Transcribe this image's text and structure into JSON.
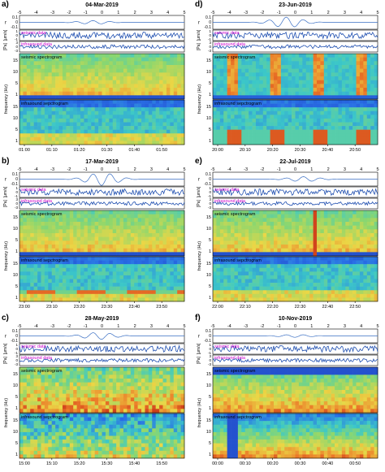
{
  "figure": {
    "panels": [
      {
        "id": "a",
        "label": "a)",
        "date": "04-Mar-2019",
        "time_ticks": [
          "01:00",
          "01:10",
          "01:20",
          "01:30",
          "01:40",
          "01:50"
        ],
        "pattern": "continuous"
      },
      {
        "id": "b",
        "label": "b)",
        "date": "17-Mar-2019",
        "time_ticks": [
          "23:00",
          "23:10",
          "23:20",
          "23:30",
          "23:40",
          "23:50"
        ],
        "pattern": "bands"
      },
      {
        "id": "c",
        "label": "c)",
        "date": "28-May-2019",
        "time_ticks": [
          "15:00",
          "15:10",
          "15:20",
          "15:30",
          "15:40",
          "15:50"
        ],
        "pattern": "noisy"
      },
      {
        "id": "d",
        "label": "d)",
        "date": "23-Jun-2019",
        "time_ticks": [
          "20:00",
          "20:10",
          "20:20",
          "20:30",
          "20:40",
          "20:50"
        ],
        "pattern": "bursts"
      },
      {
        "id": "e",
        "label": "e)",
        "date": "22-Jul-2019",
        "time_ticks": [
          "22:00",
          "22:10",
          "22:20",
          "22:30",
          "22:40",
          "22:50"
        ],
        "pattern": "spike"
      },
      {
        "id": "f",
        "label": "f)",
        "date": "10-Nov-2019",
        "time_ticks": [
          "00:00",
          "00:10",
          "00:20",
          "00:30",
          "00:40",
          "00:50"
        ],
        "pattern": "event"
      }
    ],
    "wavelet_x_ticks": [
      "-5",
      "-4",
      "-3",
      "-2",
      "-1",
      "0",
      "1",
      "2",
      "3",
      "4",
      "5"
    ],
    "wavelet_y_ticks": [
      "0.1",
      "0",
      "-0.1"
    ],
    "wavelet_ylabel": "r",
    "seismic_label": "seismic data",
    "seismic_ylabel": "[µm/s]",
    "seismic_ticks": [
      "1",
      "0",
      "-1"
    ],
    "infrasound_label": "infrasound data",
    "infrasound_ylabel": "[Pa]",
    "infrasound_ticks": [
      "3",
      "0",
      "-3"
    ],
    "seismic_spec_label": "seismic spectrogram",
    "infra_spec_label": "infrasound sepctrogram",
    "seismic_freq_ticks": [
      "15",
      "10",
      "5",
      "1"
    ],
    "infra_freq_ticks": [
      "15",
      "10",
      "5",
      "1"
    ],
    "freq_ylabel": "frequency (Hz)",
    "colors": {
      "wavelet": "#3a6fc4",
      "seismic": "#1f4fb0",
      "infrasound": "#1f4fb0",
      "label_magenta": "#cc00cc",
      "label_black": "#000000"
    }
  }
}
